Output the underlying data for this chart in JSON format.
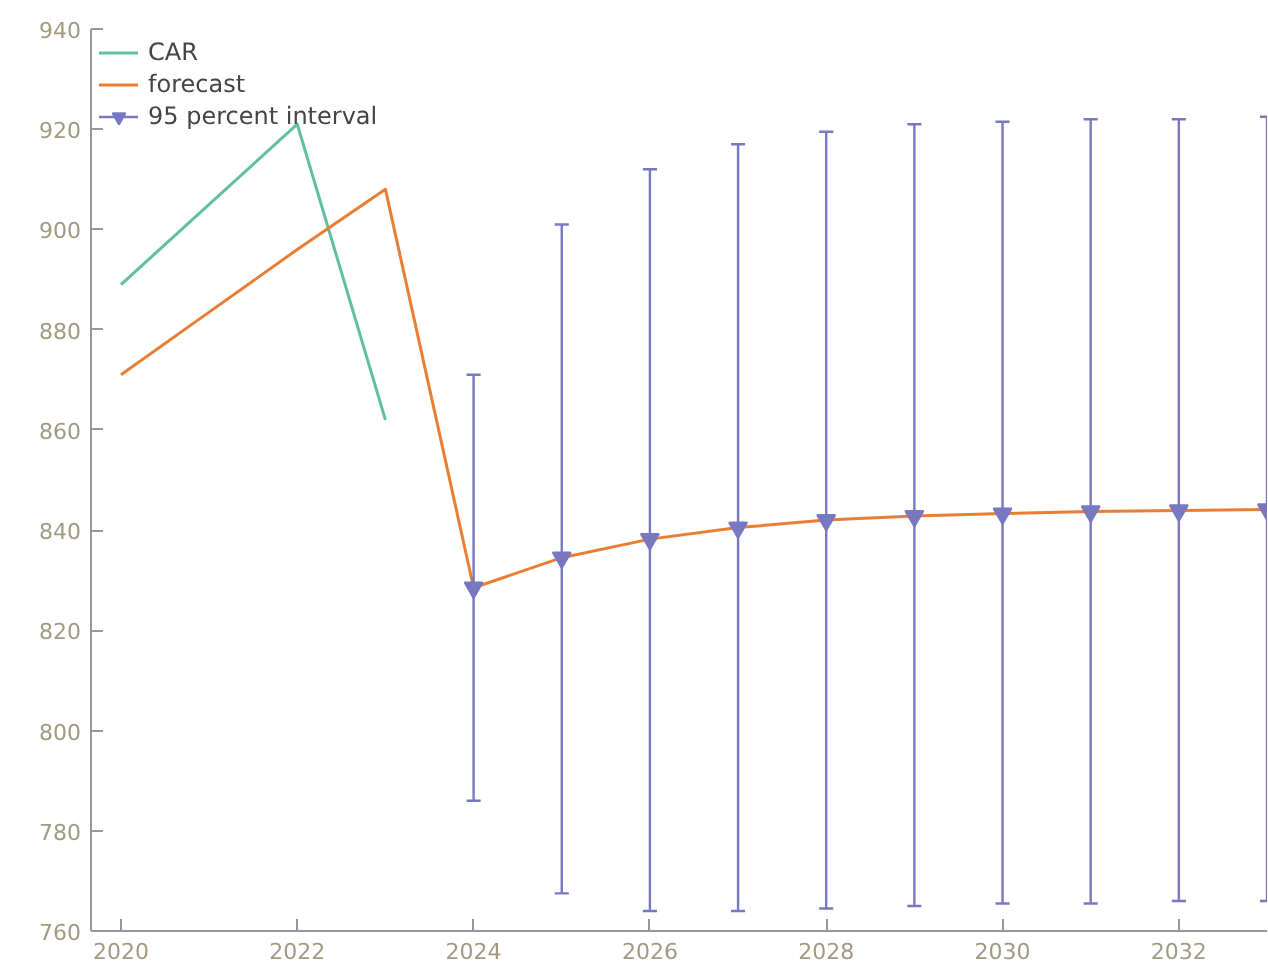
{
  "chart_data": {
    "type": "line",
    "x": [
      2020,
      2021,
      2022,
      2023,
      2024,
      2025,
      2026,
      2027,
      2028,
      2029,
      2030,
      2031,
      2032,
      2033
    ],
    "xlim": [
      2019.66,
      2033.0
    ],
    "xticks": [
      2020,
      2022,
      2024,
      2026,
      2028,
      2030,
      2032
    ],
    "ylim": [
      760,
      940
    ],
    "yticks": [
      760,
      780,
      800,
      820,
      840,
      860,
      880,
      900,
      920,
      940
    ],
    "grid": false,
    "legend": "top left",
    "series": [
      {
        "name": "CAR",
        "color": "#5fbf9f",
        "x": [
          2020,
          2022,
          2023
        ],
        "values": [
          889,
          921,
          862
        ]
      },
      {
        "name": "forecast",
        "color": "#e87e33",
        "values": [
          871,
          883.5,
          896,
          908,
          828.5,
          834.5,
          838.2,
          840.5,
          842,
          842.8,
          843.3,
          843.7,
          843.9,
          844.1
        ]
      },
      {
        "name": "95 percent interval",
        "type": "scatter",
        "marker": "triangle",
        "color": "#7878c0",
        "x": [
          2024,
          2025,
          2026,
          2027,
          2028,
          2029,
          2030,
          2031,
          2032,
          2033
        ],
        "values": [
          828.5,
          834.5,
          838.2,
          840.5,
          842,
          842.8,
          843.3,
          843.7,
          843.9,
          844.1
        ],
        "errors": [
          [
            786,
            871
          ],
          [
            767.5,
            901
          ],
          [
            764,
            912
          ],
          [
            764,
            917
          ],
          [
            764.5,
            919.5
          ],
          [
            765,
            921
          ],
          [
            765.5,
            921.5
          ],
          [
            765.5,
            922
          ],
          [
            766,
            922
          ],
          [
            766,
            922.5
          ]
        ]
      }
    ]
  }
}
